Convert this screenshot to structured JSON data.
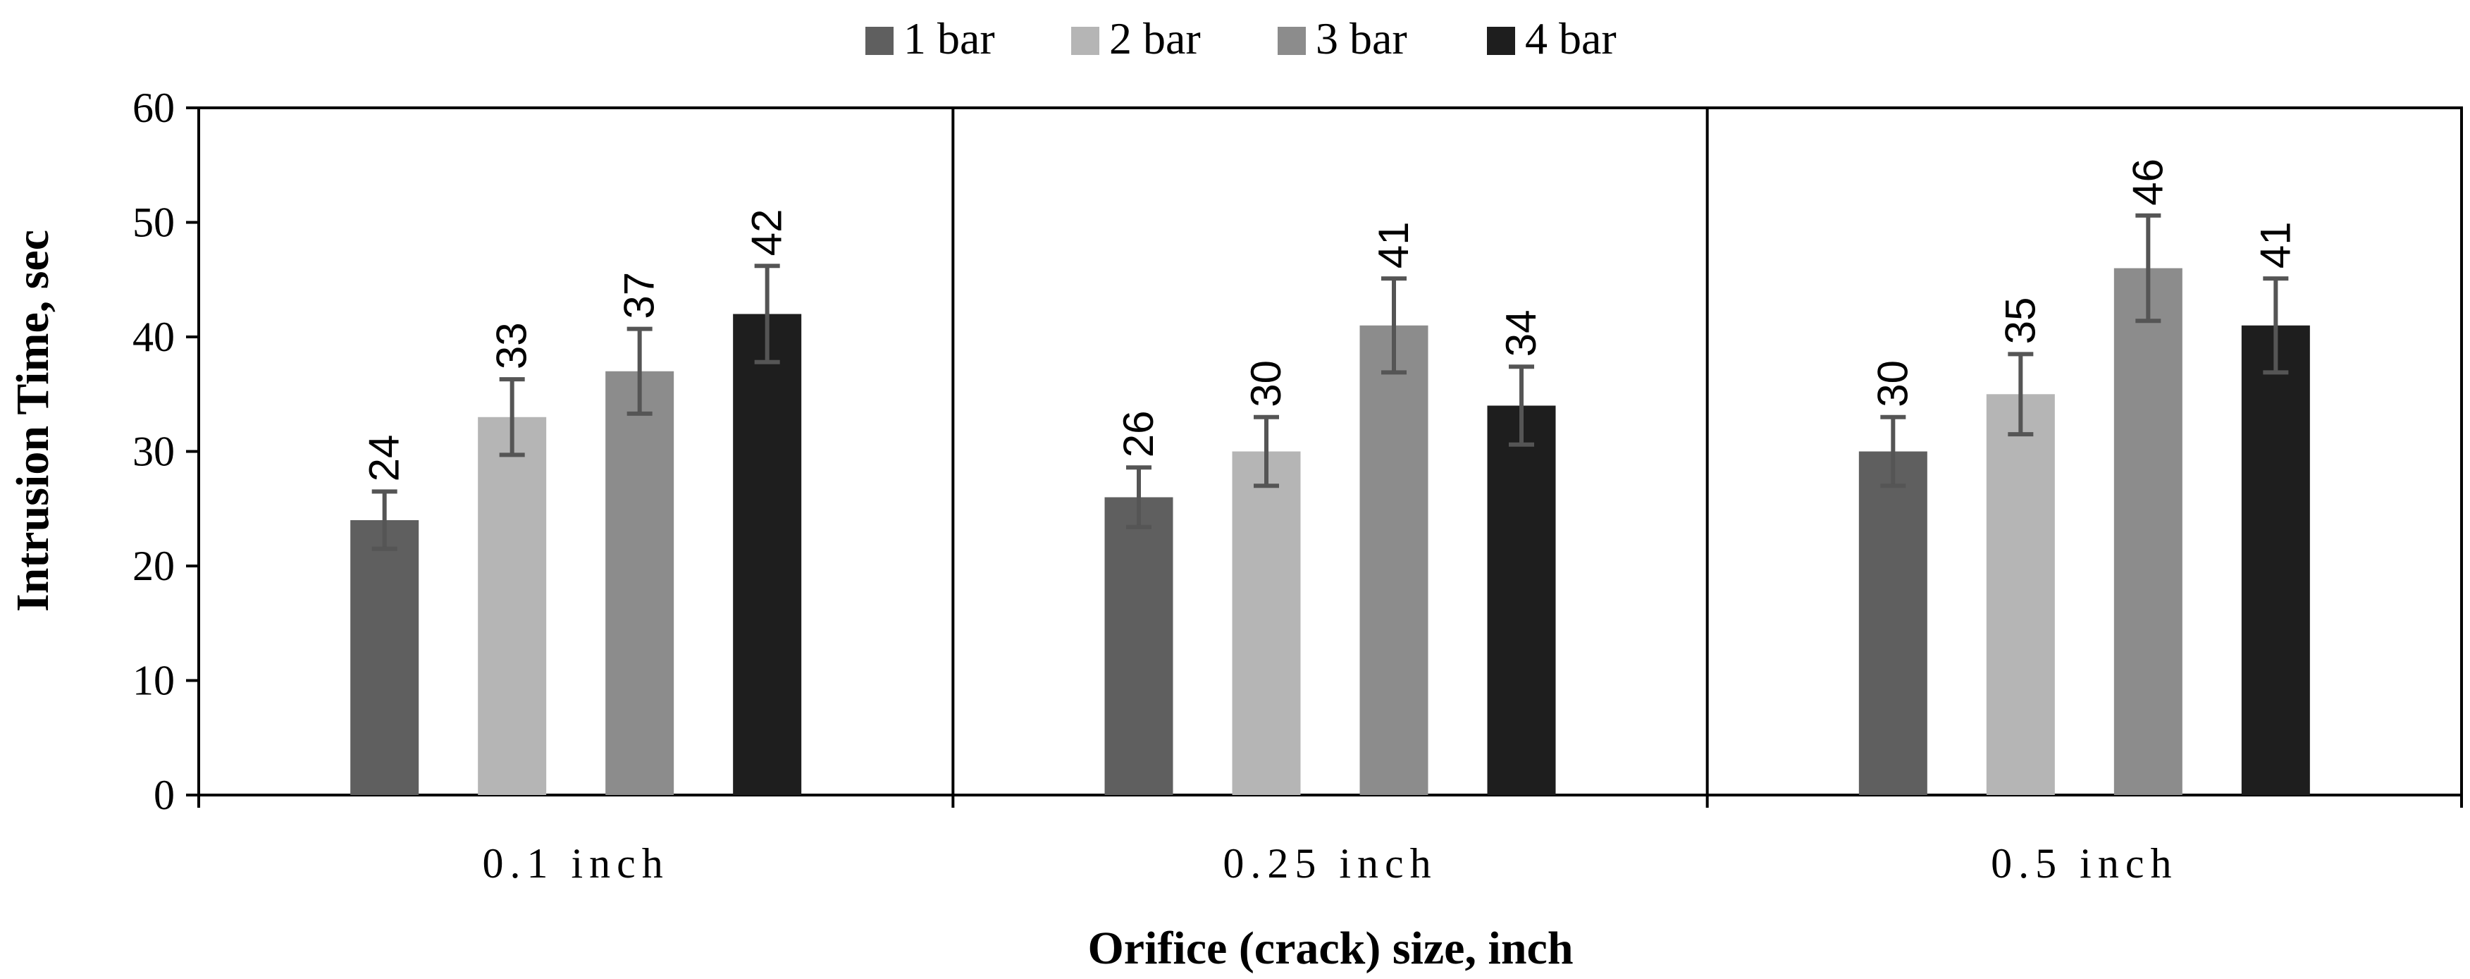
{
  "chart_data": {
    "type": "bar",
    "title": "",
    "xlabel": "Orifice (crack) size, inch",
    "ylabel": "Intrusion Time, sec",
    "ylim": [
      0,
      60
    ],
    "yticks": [
      "0",
      "10",
      "20",
      "30",
      "40",
      "50",
      "60"
    ],
    "categories": [
      "0.1 inch",
      "0.25 inch",
      "0.5 inch"
    ],
    "legend_position": "top-center",
    "grid": false,
    "series": [
      {
        "name": "1 bar",
        "color": "#5f5f5f",
        "values": [
          24,
          26,
          30
        ],
        "errors": [
          2.5,
          2.6,
          3.0
        ],
        "labels": [
          "24",
          "26",
          "30"
        ]
      },
      {
        "name": "2 bar",
        "color": "#b5b5b5",
        "values": [
          33,
          30,
          35
        ],
        "errors": [
          3.3,
          3.0,
          3.5
        ],
        "labels": [
          "33",
          "30",
          "35"
        ]
      },
      {
        "name": "3 bar",
        "color": "#8c8c8c",
        "values": [
          37,
          41,
          46
        ],
        "errors": [
          3.7,
          4.1,
          4.6
        ],
        "labels": [
          "37",
          "41",
          "46"
        ]
      },
      {
        "name": "4 bar",
        "color": "#1e1e1e",
        "values": [
          42,
          34,
          41
        ],
        "errors": [
          4.2,
          3.4,
          4.1
        ],
        "labels": [
          "42",
          "34",
          "41"
        ]
      }
    ],
    "error_bar_color": "#555555"
  }
}
